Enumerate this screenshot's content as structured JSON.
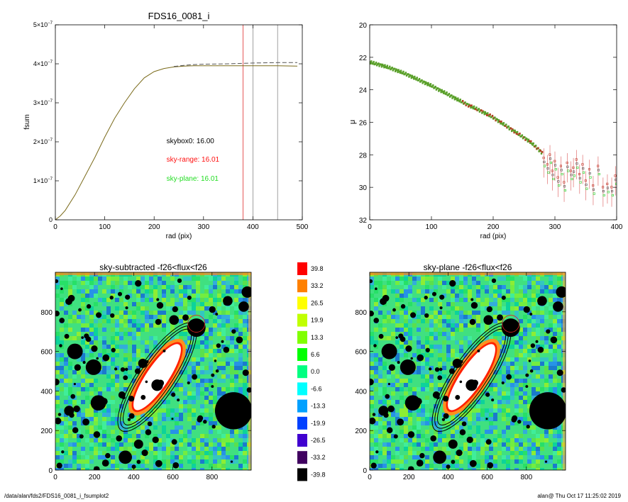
{
  "chart_data": [
    {
      "type": "line",
      "title": "FDS16_0081_i",
      "xlabel": "rad (pix)",
      "ylabel": "fsum",
      "xlim": [
        0,
        500
      ],
      "ylim": [
        0,
        5e-07
      ],
      "x_ticks": [
        "0",
        "100",
        "200",
        "300",
        "400",
        "500"
      ],
      "y_ticks": [
        {
          "value": 0,
          "mantissa": "0",
          "exp": ""
        },
        {
          "value": 1e-07,
          "mantissa": "1×10",
          "exp": "−7"
        },
        {
          "value": 2e-07,
          "mantissa": "2×10",
          "exp": "−7"
        },
        {
          "value": 3e-07,
          "mantissa": "3×10",
          "exp": "−7"
        },
        {
          "value": 4e-07,
          "mantissa": "4×10",
          "exp": "−7"
        },
        {
          "value": 5e-07,
          "mantissa": "5×10",
          "exp": "−7"
        }
      ],
      "series": [
        {
          "color": "#7a6a1a",
          "style": "solid",
          "x": [
            0,
            10,
            20,
            40,
            60,
            80,
            100,
            120,
            140,
            160,
            180,
            200,
            220,
            240,
            260,
            280,
            300,
            350,
            400,
            450,
            490
          ],
          "y": [
            0,
            1e-08,
            2.4e-08,
            6.4e-08,
            1.12e-07,
            1.6e-07,
            2.12e-07,
            2.6e-07,
            3e-07,
            3.36e-07,
            3.64e-07,
            3.8e-07,
            3.88e-07,
            3.92e-07,
            3.94e-07,
            3.95e-07,
            3.95e-07,
            3.95e-07,
            3.95e-07,
            3.95e-07,
            3.94e-07
          ]
        },
        {
          "color": "#555555",
          "style": "dashed",
          "x": [
            240,
            260,
            280,
            300,
            350,
            400,
            450,
            490
          ],
          "y": [
            3.93e-07,
            3.96e-07,
            3.98e-07,
            3.99e-07,
            4e-07,
            4.02e-07,
            4.03e-07,
            4.03e-07
          ]
        }
      ],
      "vlines": [
        {
          "x": 380,
          "color": "#e03030"
        },
        {
          "x": 400,
          "color": "#888888"
        },
        {
          "x": 450,
          "color": "#888888"
        }
      ],
      "annotations": [
        {
          "text": "skybox0: 16.00",
          "color": "#000000",
          "x": 225,
          "y": 1.96e-07
        },
        {
          "text": "sky-range: 16.01",
          "color": "#ff1010",
          "x": 225,
          "y": 1.49e-07
        },
        {
          "text": "sky-plane: 16.01",
          "color": "#22dd22",
          "x": 225,
          "y": 1e-07
        }
      ]
    },
    {
      "type": "scatter",
      "title": "",
      "xlabel": "rad (pix)",
      "ylabel": "μ",
      "xlim": [
        0,
        400
      ],
      "ylim": [
        32,
        20
      ],
      "x_ticks": [
        "0",
        "100",
        "200",
        "300",
        "400"
      ],
      "y_ticks": [
        "20",
        "22",
        "24",
        "26",
        "28",
        "30",
        "32"
      ],
      "profile": {
        "color": "#5aa02a",
        "x": [
          0,
          20,
          40,
          60,
          80,
          100,
          120,
          140,
          160,
          180,
          200,
          220,
          240,
          260,
          280
        ],
        "y": [
          22.3,
          22.5,
          22.75,
          23.05,
          23.4,
          23.75,
          24.15,
          24.55,
          24.95,
          25.3,
          25.7,
          26.2,
          26.7,
          27.2,
          27.9
        ]
      },
      "outer_points": {
        "x": [
          282,
          288,
          292,
          296,
          300,
          305,
          310,
          315,
          320,
          326,
          330,
          335,
          340,
          345,
          350,
          356,
          362,
          370,
          378,
          385,
          392,
          398
        ],
        "y": [
          28.2,
          28.6,
          28.0,
          29.0,
          28.4,
          29.4,
          28.7,
          29.7,
          28.5,
          29.0,
          28.8,
          28.3,
          29.2,
          28.6,
          29.6,
          28.9,
          29.9,
          28.7,
          30.0,
          29.8,
          30.0,
          29.3
        ],
        "colors": [
          "#c0392b",
          "#555555",
          "#22cc22"
        ]
      }
    },
    {
      "type": "heatmap",
      "title": "sky-subtracted -f26<flux<f26",
      "xlim": [
        0,
        1000
      ],
      "ylim": [
        0,
        1000
      ],
      "x_ticks": [
        "0",
        "200",
        "400",
        "600",
        "800"
      ],
      "y_ticks": [
        "0",
        "200",
        "400",
        "600",
        "800"
      ]
    },
    {
      "type": "heatmap",
      "title": "sky-plane -f26<flux<f26",
      "xlim": [
        0,
        1000
      ],
      "ylim": [
        0,
        1000
      ],
      "x_ticks": [
        "0",
        "200",
        "400",
        "600",
        "800"
      ],
      "y_ticks": [
        "0",
        "200",
        "400",
        "600",
        "800"
      ]
    }
  ],
  "colorbar": {
    "labels": [
      "39.8",
      "33.2",
      "26.5",
      "19.9",
      "13.3",
      "6.6",
      "0.0",
      "-6.6",
      "-13.3",
      "-19.9",
      "-26.5",
      "-33.2",
      "-39.8"
    ],
    "colors": [
      "#ff0000",
      "#ff8000",
      "#ffff00",
      "#c0ff00",
      "#80ff00",
      "#00ff00",
      "#00ff80",
      "#00ffff",
      "#00a0ff",
      "#0040ff",
      "#4000d0",
      "#400060",
      "#000000"
    ]
  },
  "image": {
    "galaxy": {
      "cx": 520,
      "cy": 470,
      "a": 400,
      "b": 80,
      "angle_deg": 56
    },
    "bright_star": {
      "cx": 910,
      "cy": 300,
      "r": 95
    },
    "apertures": [
      {
        "a": 470,
        "b": 120
      },
      {
        "a": 500,
        "b": 140
      },
      {
        "a": 530,
        "b": 160
      }
    ]
  },
  "footer": {
    "path": "/data/alan/fds2/FDS16_0081_i_fsumplot2",
    "user_time": "alan@  Thu Oct 17 11:25:02 2019"
  }
}
